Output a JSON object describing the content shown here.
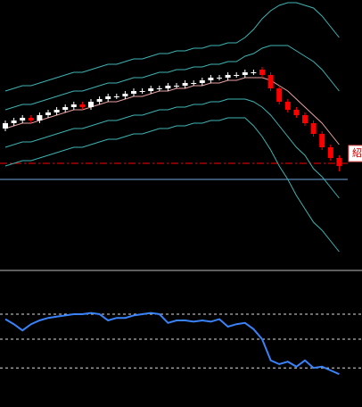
{
  "chart_data": [
    {
      "type": "candlestick",
      "open": [
        52,
        54,
        55,
        56,
        55,
        57,
        58,
        59,
        60,
        61,
        60,
        62,
        63,
        64,
        64,
        65,
        66,
        66,
        67,
        67,
        68,
        68,
        69,
        69,
        70,
        71,
        71,
        72,
        72,
        73,
        74,
        72,
        67,
        62,
        59,
        57,
        54,
        50,
        45,
        41
      ],
      "high": [
        55,
        56,
        57,
        57,
        58,
        59,
        60,
        61,
        62,
        62,
        63,
        64,
        65,
        65,
        66,
        67,
        67,
        68,
        68,
        69,
        69,
        70,
        70,
        71,
        72,
        72,
        73,
        73,
        74,
        74,
        75,
        73,
        68,
        63,
        60,
        58,
        55,
        51,
        46,
        42
      ],
      "low": [
        51,
        53,
        54,
        54,
        54,
        56,
        57,
        58,
        59,
        59,
        59,
        61,
        62,
        63,
        63,
        64,
        65,
        65,
        66,
        66,
        67,
        67,
        68,
        68,
        69,
        70,
        70,
        71,
        71,
        72,
        71,
        66,
        61,
        58,
        56,
        53,
        49,
        44,
        40,
        36
      ],
      "close": [
        54,
        55,
        56,
        55,
        57,
        58,
        59,
        60,
        61,
        60,
        62,
        63,
        64,
        64,
        65,
        66,
        66,
        67,
        67,
        68,
        68,
        69,
        69,
        70,
        71,
        71,
        72,
        72,
        73,
        73,
        72,
        67,
        62,
        59,
        57,
        54,
        50,
        45,
        41,
        38
      ],
      "up_color": "#ffffff",
      "down_color": "#ff0000",
      "ylim": [
        0,
        100
      ],
      "series": [
        {
          "color": "#3fb3b3",
          "values": [
            66,
            67,
            68,
            68,
            69,
            70,
            71,
            72,
            73,
            73,
            74,
            75,
            76,
            76,
            77,
            78,
            78,
            79,
            80,
            80,
            81,
            81,
            82,
            82,
            83,
            83,
            84,
            84,
            86,
            89,
            93,
            96,
            98,
            99,
            99,
            98,
            97,
            94,
            90,
            86
          ]
        },
        {
          "color": "#3fb3b3",
          "values": [
            59,
            60,
            61,
            61,
            62,
            63,
            64,
            65,
            66,
            66,
            67,
            68,
            69,
            69,
            70,
            71,
            71,
            72,
            73,
            73,
            74,
            74,
            75,
            75,
            76,
            76,
            77,
            77,
            79,
            80,
            82,
            83,
            83,
            83,
            81,
            79,
            77,
            74,
            70,
            66
          ]
        },
        {
          "color": "#e8a0a0",
          "values": [
            52,
            53,
            54,
            54,
            55,
            56,
            57,
            58,
            59,
            59,
            60,
            61,
            62,
            62,
            63,
            64,
            64,
            65,
            66,
            66,
            67,
            67,
            68,
            68,
            69,
            69,
            70,
            70,
            71,
            71,
            71,
            70,
            68,
            66,
            63,
            60,
            57,
            54,
            50,
            46
          ]
        },
        {
          "color": "#3fb3b3",
          "values": [
            45,
            46,
            47,
            47,
            48,
            49,
            50,
            51,
            52,
            52,
            53,
            54,
            55,
            55,
            56,
            57,
            57,
            58,
            59,
            59,
            60,
            60,
            61,
            61,
            62,
            62,
            63,
            63,
            63,
            62,
            60,
            57,
            53,
            49,
            45,
            42,
            37,
            34,
            30,
            26
          ]
        },
        {
          "color": "#3fb3b3",
          "values": [
            38,
            39,
            40,
            40,
            41,
            42,
            43,
            44,
            45,
            45,
            46,
            47,
            48,
            48,
            49,
            50,
            50,
            51,
            52,
            52,
            53,
            53,
            54,
            54,
            55,
            55,
            56,
            56,
            56,
            53,
            49,
            44,
            38,
            33,
            27,
            22,
            17,
            14,
            10,
            6
          ]
        }
      ],
      "levels": [
        {
          "value": 39,
          "color": "#ff0000",
          "style": "dashdot"
        },
        {
          "value": 33,
          "color": "#6fa8dc",
          "style": "solid"
        }
      ],
      "label": "紹"
    },
    {
      "type": "line",
      "values": [
        66,
        62,
        57,
        62,
        65,
        67,
        68,
        69,
        70,
        70,
        71,
        70,
        65,
        67,
        67,
        69,
        70,
        71,
        70,
        63,
        65,
        65,
        64,
        65,
        64,
        66,
        60,
        62,
        63,
        58,
        50,
        33,
        30,
        32,
        28,
        33,
        27,
        28,
        25,
        22
      ],
      "color": "#3a82f7",
      "ylim": [
        0,
        100
      ],
      "levels": [
        70,
        50,
        27
      ],
      "level_color": "#dddddd"
    }
  ]
}
